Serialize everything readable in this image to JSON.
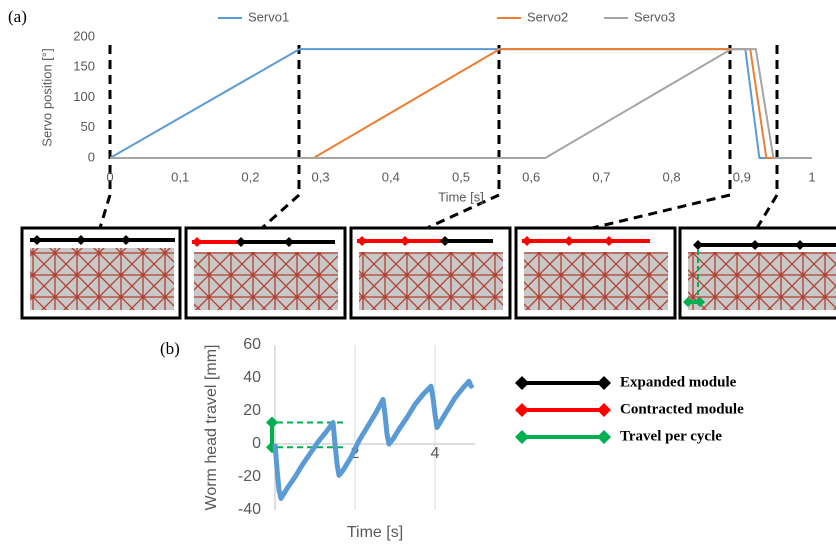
{
  "chart_data": [
    {
      "type": "line",
      "panel_label": "(a)",
      "x_label": "Time [s]",
      "y_label": "Servo position [°]",
      "xlim": [
        0,
        1
      ],
      "ylim": [
        0,
        200
      ],
      "xticks": [
        0,
        {
          "value": 0.1,
          "label": "0,1"
        },
        {
          "value": 0.2,
          "label": "0,2"
        },
        {
          "value": 0.3,
          "label": "0,3"
        },
        {
          "value": 0.4,
          "label": "0,4"
        },
        {
          "value": 0.5,
          "label": "0,5"
        },
        {
          "value": 0.6,
          "label": "0,6"
        },
        {
          "value": 0.7,
          "label": "0,7"
        },
        {
          "value": 0.8,
          "label": "0,8"
        },
        {
          "value": 0.9,
          "label": "0,9"
        },
        1
      ],
      "yticks": [
        0,
        50,
        100,
        150,
        200
      ],
      "series": [
        {
          "name": "Servo1",
          "color": "#5b9bd5",
          "x": [
            0,
            0.27,
            0.905,
            0.925,
            1
          ],
          "values": [
            0,
            180,
            180,
            0,
            0
          ]
        },
        {
          "name": "Servo2",
          "color": "#ed7d31",
          "x": [
            0,
            0.29,
            0.555,
            0.912,
            0.935,
            1
          ],
          "values": [
            0,
            0,
            180,
            180,
            0,
            0
          ]
        },
        {
          "name": "Servo3",
          "color": "#a5a5a5",
          "x": [
            0,
            0.62,
            0.885,
            0.92,
            0.945,
            1
          ],
          "values": [
            0,
            0,
            180,
            180,
            0,
            0
          ]
        }
      ]
    },
    {
      "type": "line",
      "panel_label": "(b)",
      "x_label": "Time [s]",
      "y_label": "Worm head travel [mm]",
      "xlim": [
        0,
        5
      ],
      "ylim": [
        -40,
        60
      ],
      "xticks": [
        2,
        4
      ],
      "yticks": [
        -40,
        -20,
        0,
        20,
        40,
        60
      ],
      "grid": true,
      "reference_lines": {
        "color": "#00b050",
        "values": [
          13,
          -2
        ]
      },
      "series": [
        {
          "color": "#5b9bd5",
          "x": [
            0,
            0.05,
            0.1,
            0.15,
            0.2,
            0.3,
            0.5,
            0.7,
            0.9,
            1.1,
            1.3,
            1.45,
            1.5,
            1.55,
            1.6,
            1.7,
            1.9,
            2.1,
            2.3,
            2.5,
            2.7,
            2.75,
            2.8,
            2.85,
            2.95,
            3.1,
            3.3,
            3.5,
            3.7,
            3.9,
            3.95,
            4.0,
            4.05,
            4.15,
            4.3,
            4.5,
            4.7,
            4.85,
            4.9,
            4.95
          ],
          "values": [
            0,
            -15,
            -28,
            -33,
            -31,
            -27,
            -20,
            -12,
            -5,
            2,
            8,
            13,
            0,
            -12,
            -19,
            -16,
            -8,
            2,
            10,
            18,
            27,
            18,
            6,
            0,
            3,
            9,
            16,
            24,
            30,
            35,
            28,
            18,
            10,
            14,
            20,
            28,
            34,
            38,
            35,
            36
          ]
        }
      ],
      "annotations": [
        {
          "text": "Expanded module",
          "color": "#000000"
        },
        {
          "text": "Contracted module",
          "color": "#ff0000"
        },
        {
          "text": "Travel per cycle",
          "color": "#00b050"
        }
      ]
    }
  ]
}
